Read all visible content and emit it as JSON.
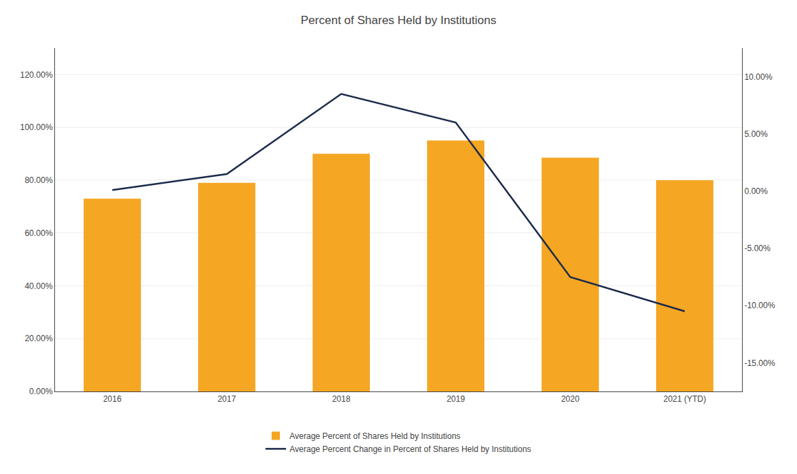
{
  "chart_data": {
    "type": "bar",
    "title": "Percent of Shares Held by Institutions",
    "categories": [
      "2016",
      "2017",
      "2018",
      "2019",
      "2020",
      "2021 (YTD)"
    ],
    "series": [
      {
        "name": "Average Percent of Shares Held by Institutions",
        "type": "bar",
        "color": "#F5A623",
        "values": [
          73.0,
          79.0,
          90.0,
          95.0,
          88.5,
          80.0
        ]
      },
      {
        "name": "Average Percent Change in Percent of Shares Held by Institutions",
        "type": "line",
        "color": "#1B2A4A",
        "axis": "y2",
        "values": [
          0.1,
          1.5,
          8.5,
          6.0,
          -7.5,
          -10.5
        ]
      }
    ],
    "ylim": [
      0,
      130
    ],
    "yticks": [
      {
        "value": 0,
        "label": "0.00%"
      },
      {
        "value": 20,
        "label": "20.00%"
      },
      {
        "value": 40,
        "label": "40.00%"
      },
      {
        "value": 60,
        "label": "60.00%"
      },
      {
        "value": 80,
        "label": "80.00%"
      },
      {
        "value": 100,
        "label": "100.00%"
      },
      {
        "value": 120,
        "label": "120.00%"
      }
    ],
    "y2lim": [
      -17.5,
      12.5
    ],
    "y2ticks": [
      {
        "value": -15,
        "label": "-15.00%"
      },
      {
        "value": -10,
        "label": "-10.00%"
      },
      {
        "value": -5,
        "label": "-5.00%"
      },
      {
        "value": 0,
        "label": "0.00%"
      },
      {
        "value": 5,
        "label": "5.00%"
      },
      {
        "value": 10,
        "label": "10.00%"
      }
    ],
    "grid": true,
    "legend": "bottom"
  }
}
